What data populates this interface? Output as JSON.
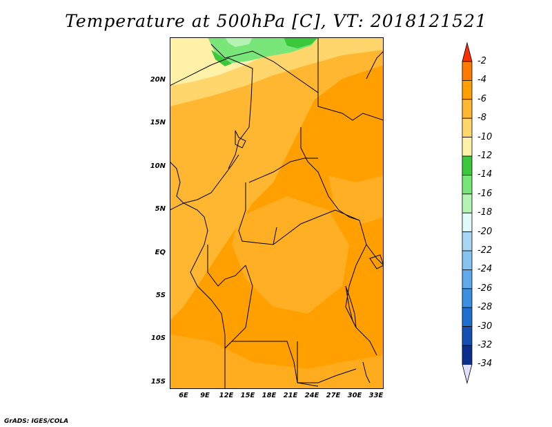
{
  "title": "Temperature at 500hPa [C], VT: 2018121521",
  "credit": "GrADS: IGES/COLA",
  "lat_ticks": [
    "20N",
    "15N",
    "10N",
    "5N",
    "EQ",
    "5S",
    "10S",
    "15S"
  ],
  "lon_ticks": [
    "6E",
    "9E",
    "12E",
    "15E",
    "18E",
    "21E",
    "24E",
    "27E",
    "30E",
    "33E"
  ],
  "colorbar": {
    "labels": [
      "-2",
      "-4",
      "-6",
      "-8",
      "-10",
      "-12",
      "-14",
      "-16",
      "-18",
      "-20",
      "-22",
      "-24",
      "-26",
      "-28",
      "-30",
      "-32",
      "-34"
    ],
    "colors": [
      "#ff4500",
      "#ff7a00",
      "#ff9f00",
      "#ffb732",
      "#ffd66b",
      "#fff2a8",
      "#3cc83c",
      "#78e678",
      "#b4f5b4",
      "#e0fafa",
      "#a9d6f5",
      "#86c3f0",
      "#5eaaea",
      "#3a8fe0",
      "#1f6fd0",
      "#1450b4",
      "#0c2e8c",
      "#08186e"
    ],
    "top_arrow_color": "#ff3000",
    "bottom_arrow_color": "#e0e0ff"
  },
  "map": {
    "lon_range": [
      4,
      34
    ],
    "lat_range": [
      -16,
      24.5
    ],
    "dominant_colors": {
      "warm": "#ff9f00",
      "warmer": "#ffb732",
      "cool": "#ffd66b",
      "cold": "#fff2a8",
      "green": "#78e678",
      "darkgreen": "#3cc83c"
    }
  }
}
